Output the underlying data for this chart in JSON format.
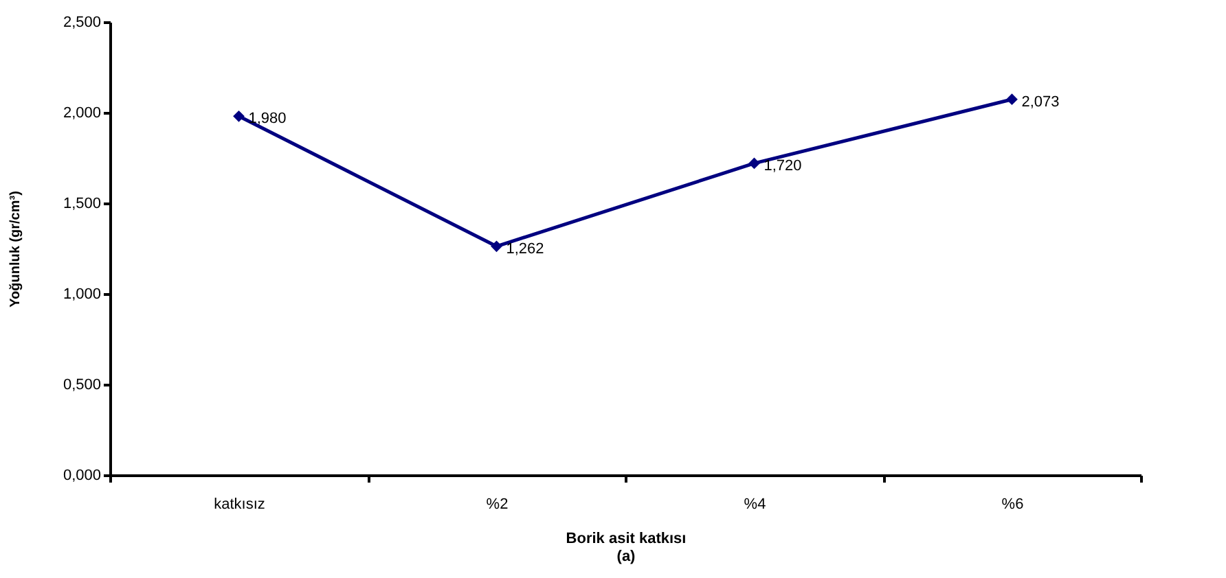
{
  "chart_data": {
    "type": "line",
    "xlabel": "Borik asit katkısı",
    "ylabel": "Yoğunluk (gr/cm³)",
    "annotations": [
      "(a)"
    ],
    "categories": [
      "katkısız",
      "%2",
      "%4",
      "%6"
    ],
    "series": [
      {
        "color": "#000080",
        "values": [
          1.98,
          1.262,
          1.72,
          2.073
        ],
        "value_labels": [
          "1,980",
          "1,262",
          "1,720",
          "2,073"
        ]
      }
    ],
    "ylim": [
      0,
      2.5
    ],
    "yticks": [
      {
        "value": 0,
        "label": "0,000"
      },
      {
        "value": 0.5,
        "label": "0,500"
      },
      {
        "value": 1,
        "label": "1,000"
      },
      {
        "value": 1.5,
        "label": "1,500"
      },
      {
        "value": 2,
        "label": "2,000"
      },
      {
        "value": 2.5,
        "label": "2,500"
      }
    ],
    "grid": false,
    "marker": "diamond",
    "line_style": "solid"
  }
}
